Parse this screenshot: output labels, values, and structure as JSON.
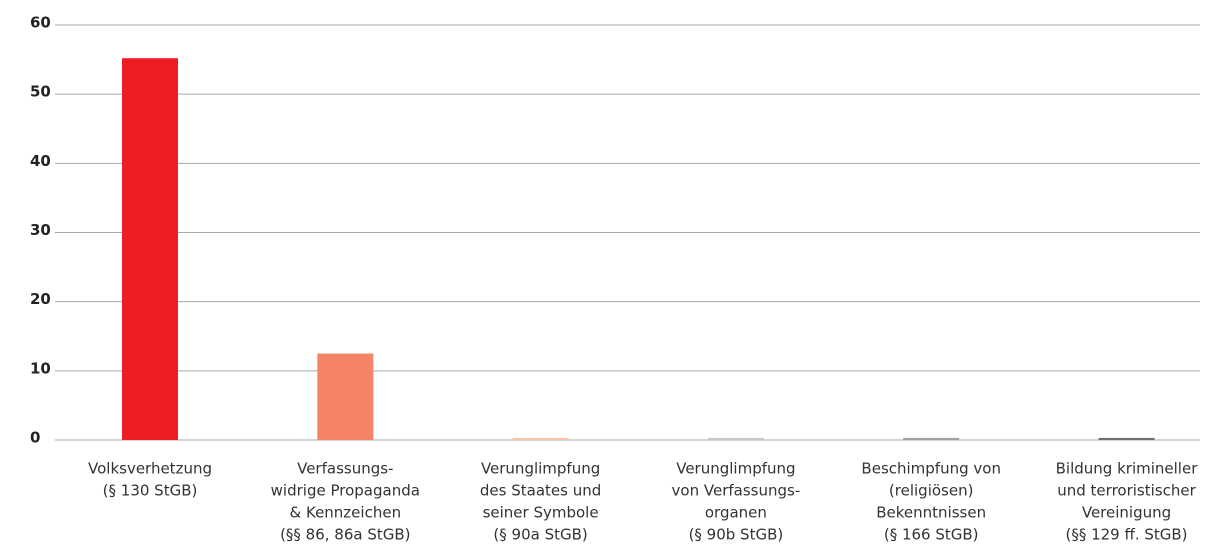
{
  "chart_data": {
    "type": "bar",
    "categories": [
      [
        "Volksverhetzung",
        "(§ 130 StGB)"
      ],
      [
        "Verfassungs-",
        "widrige Propaganda",
        "& Kennzeichen",
        "(§§ 86, 86a StGB)"
      ],
      [
        "Verunglimpfung",
        "des Staates und",
        "seiner Symbole",
        "(§ 90a StGB)"
      ],
      [
        "Verunglimpfung",
        "von Verfassungs-",
        "organen",
        "(§ 90b StGB)"
      ],
      [
        "Beschimpfung von",
        "(religiösen)",
        "Bekenntnissen",
        "(§ 166 StGB)"
      ],
      [
        "Bildung krimineller",
        "und terroristischer",
        "Vereinigung",
        "(§§ 129 ff. StGB)"
      ]
    ],
    "values": [
      55.2,
      12.5,
      0.3,
      0.3,
      0.3,
      0.3
    ],
    "colors": [
      "#ee1c25",
      "#f58466",
      "#fbc3a8",
      "#c8c8c8",
      "#a0a0a0",
      "#6f6f6f"
    ],
    "ylim": [
      0,
      60
    ],
    "yticks": [
      0,
      10,
      20,
      30,
      40,
      50,
      60
    ],
    "grid": true
  }
}
